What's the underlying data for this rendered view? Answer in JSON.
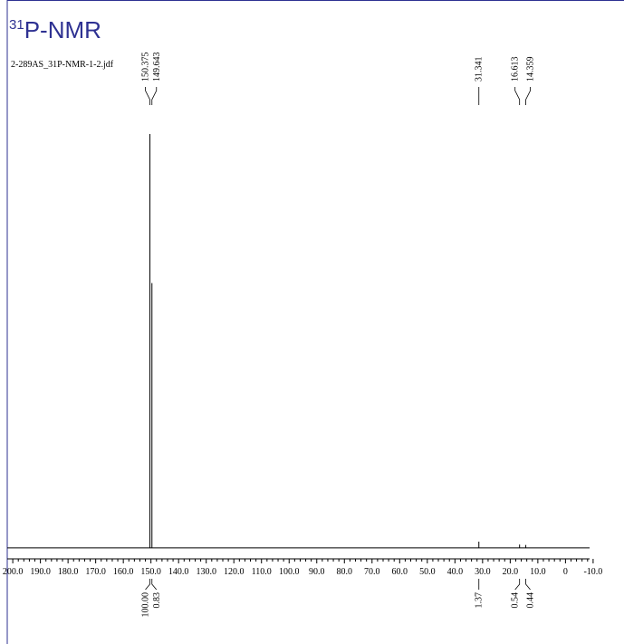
{
  "chart_data": {
    "type": "spectrum",
    "title_superscript": "31",
    "title": "P-NMR",
    "subtitle": "2-289AS_31P-NMR-1-2.jdf",
    "color": "#000000",
    "title_color": "#2e3192",
    "xlim": [
      202,
      -12
    ],
    "xticks": [
      {
        "value": 200,
        "label": "200.0"
      },
      {
        "value": 190,
        "label": "190.0"
      },
      {
        "value": 180,
        "label": "180.0"
      },
      {
        "value": 170,
        "label": "170.0"
      },
      {
        "value": 160,
        "label": "160.0"
      },
      {
        "value": 150,
        "label": "150.0"
      },
      {
        "value": 140,
        "label": "140.0"
      },
      {
        "value": 130,
        "label": "130.0"
      },
      {
        "value": 120,
        "label": "120.0"
      },
      {
        "value": 110,
        "label": "110.0"
      },
      {
        "value": 100,
        "label": "100.0"
      },
      {
        "value": 90,
        "label": "90.0"
      },
      {
        "value": 80,
        "label": "80.0"
      },
      {
        "value": 70,
        "label": "70.0"
      },
      {
        "value": 60,
        "label": "60.0"
      },
      {
        "value": 50,
        "label": "50.0"
      },
      {
        "value": 40,
        "label": "40.0"
      },
      {
        "value": 30,
        "label": "30.0"
      },
      {
        "value": 20,
        "label": "20.0"
      },
      {
        "value": 10,
        "label": "10.0"
      },
      0,
      {
        "value": -10,
        "label": "-10.0"
      }
    ],
    "ylim": [
      -2,
      100
    ],
    "peaks": [
      150.375,
      149.643,
      31.341,
      16.613,
      14.359
    ],
    "heights": [
      100,
      64,
      1.5,
      0.8,
      0.7
    ],
    "integrals": [
      100,
      0.83,
      1.37,
      0.54,
      0.44
    ],
    "integral_labels": [
      "100.00",
      "0.83",
      "1.37",
      "0.54",
      "0.44"
    ]
  }
}
